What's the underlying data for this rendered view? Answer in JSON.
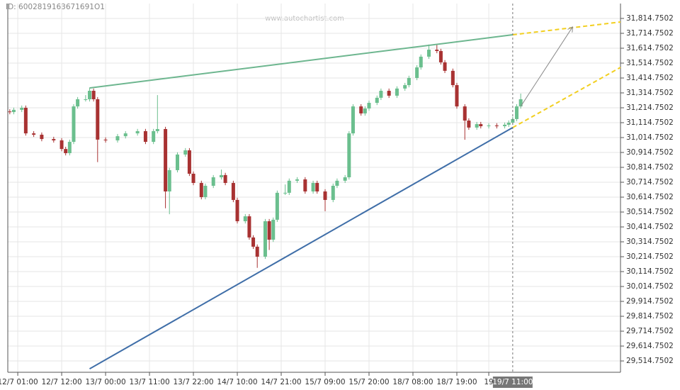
{
  "header": {
    "id": "ID: 6002819163671691O1",
    "watermark": "www.autochartist.com"
  },
  "chart_data": {
    "type": "candlestick",
    "x": [
      -2,
      -1,
      1,
      2,
      4,
      6,
      9,
      11,
      12,
      13,
      14,
      15,
      17,
      18,
      19,
      20,
      22,
      25,
      27,
      30,
      32,
      34,
      35,
      37,
      38,
      40,
      42,
      43,
      44,
      46,
      47,
      49,
      51,
      52,
      54,
      55,
      57,
      58,
      59,
      60,
      62,
      63,
      64,
      65,
      67,
      68,
      70,
      72,
      74,
      75,
      77,
      79,
      80,
      82,
      83,
      84,
      86,
      87,
      88,
      90,
      91,
      93,
      95,
      97,
      98,
      100,
      101,
      103,
      105,
      106,
      107,
      109,
      110,
      112,
      113,
      115,
      116,
      118,
      120,
      122,
      123,
      124,
      125,
      126
    ],
    "open": [
      31190,
      31186,
      31201,
      31215,
      31043,
      31034,
      31005,
      30996,
      30938,
      30910,
      30986,
      31224,
      31272,
      31272,
      31329,
      31272,
      31001,
      30996,
      31024,
      31043,
      31058,
      30986,
      31058,
      31072,
      30653,
      30796,
      30901,
      30929,
      30772,
      30710,
      30615,
      30691,
      30748,
      30763,
      30710,
      30596,
      30453,
      30486,
      30344,
      30282,
      30215,
      30453,
      30329,
      30463,
      30644,
      30644,
      30725,
      30734,
      30653,
      30710,
      30653,
      30596,
      30691,
      30725,
      30748,
      31043,
      31224,
      31177,
      31210,
      31248,
      31282,
      31329,
      31296,
      31344,
      31367,
      31415,
      31486,
      31558,
      31605,
      31596,
      31520,
      31463,
      31367,
      31224,
      31129,
      31082,
      31105,
      31091,
      31096,
      31091,
      31101,
      31115,
      31139,
      31224
    ],
    "high": [
      31205,
      31216,
      31230,
      31230,
      31058,
      31049,
      31020,
      31011,
      30953,
      31001,
      31239,
      31287,
      31300,
      31350,
      31344,
      31287,
      31016,
      31039,
      31058,
      31073,
      31073,
      31073,
      31300,
      31087,
      30811,
      30916,
      30944,
      30944,
      30787,
      30725,
      30706,
      30763,
      30800,
      30778,
      30725,
      30611,
      30501,
      30501,
      30359,
      30297,
      30468,
      30468,
      30478,
      30659,
      30700,
      30740,
      30749,
      30749,
      30725,
      30725,
      30668,
      30706,
      30740,
      30763,
      31058,
      31239,
      31239,
      31225,
      31263,
      31297,
      31344,
      31344,
      31359,
      31382,
      31430,
      31501,
      31573,
      31640,
      31640,
      31611,
      31535,
      31478,
      31382,
      31239,
      31144,
      31120,
      31120,
      31111,
      31111,
      31116,
      31130,
      31154,
      31239,
      31310
    ],
    "low": [
      31171,
      31171,
      31186,
      31028,
      31019,
      30990,
      30981,
      30923,
      30895,
      30895,
      30971,
      31209,
      31257,
      31257,
      31257,
      30850,
      30981,
      30981,
      31009,
      31028,
      30971,
      30971,
      31043,
      30540,
      30500,
      30781,
      30886,
      30757,
      30695,
      30600,
      30600,
      30676,
      30733,
      30695,
      30581,
      30438,
      30438,
      30329,
      30267,
      30140,
      30200,
      30260,
      30314,
      30448,
      30629,
      30629,
      30710,
      30638,
      30638,
      30638,
      30520,
      30581,
      30676,
      30710,
      30733,
      31028,
      31162,
      31162,
      31195,
      31233,
      31267,
      31281,
      31281,
      31329,
      31352,
      31400,
      31471,
      31543,
      31581,
      31505,
      31448,
      31352,
      31209,
      31000,
      31067,
      31067,
      31076,
      31076,
      31076,
      31076,
      31086,
      31100,
      31124,
      31209
    ],
    "close": [
      31186,
      31201,
      31215,
      31043,
      31034,
      31005,
      30996,
      30938,
      30910,
      30986,
      31224,
      31272,
      31272,
      31329,
      31272,
      31001,
      30996,
      31024,
      31043,
      31058,
      30986,
      31058,
      31072,
      30653,
      30796,
      30901,
      30929,
      30772,
      30710,
      30615,
      30691,
      30748,
      30763,
      30710,
      30596,
      30453,
      30486,
      30344,
      30282,
      30215,
      30453,
      30329,
      30463,
      30644,
      30644,
      30725,
      30734,
      30653,
      30710,
      30653,
      30596,
      30691,
      30725,
      30748,
      31043,
      31224,
      31177,
      31210,
      31248,
      31282,
      31329,
      31296,
      31344,
      31367,
      31415,
      31486,
      31558,
      31605,
      31596,
      31520,
      31463,
      31367,
      31224,
      31129,
      31082,
      31105,
      31091,
      31096,
      31091,
      31101,
      31115,
      31139,
      31224,
      31272
    ],
    "up_color": "#6bbf8e",
    "down_color": "#a83232",
    "xlim": [
      -2.5,
      151
    ],
    "xticks": [
      {
        "value": 0,
        "label": "12/7 01:00"
      },
      {
        "value": 11,
        "label": "12/7 12:00"
      },
      {
        "value": 22,
        "label": "13/7 00:00"
      },
      {
        "value": 33,
        "label": "13/7 11:00"
      },
      {
        "value": 44,
        "label": "13/7 22:00"
      },
      {
        "value": 55,
        "label": "14/7 10:00"
      },
      {
        "value": 66,
        "label": "14/7 21:00"
      },
      {
        "value": 77,
        "label": "15/7 09:00"
      },
      {
        "value": 88,
        "label": "15/7 20:00"
      },
      {
        "value": 99,
        "label": "18/7 08:00"
      },
      {
        "value": 110,
        "label": "18/7 19:00"
      },
      {
        "value": 118,
        "label": "19"
      }
    ],
    "highlight_xtick": {
      "value": 124,
      "label": "19/7 11:00"
    },
    "ylim": [
      29438.75,
      31914.75
    ],
    "yticks": [
      {
        "value": 31814.7502,
        "label": "31,814.7502"
      },
      {
        "value": 31714.7502,
        "label": "31,714.7502"
      },
      {
        "value": 31614.7502,
        "label": "31,614.7502"
      },
      {
        "value": 31514.7502,
        "label": "31,514.7502"
      },
      {
        "value": 31414.7502,
        "label": "31,414.7502"
      },
      {
        "value": 31314.7502,
        "label": "31,314.7502"
      },
      {
        "value": 31214.7502,
        "label": "31,214.7502"
      },
      {
        "value": 31114.7502,
        "label": "31,114.7502"
      },
      {
        "value": 31014.7502,
        "label": "31,014.7502"
      },
      {
        "value": 30914.7502,
        "label": "30,914.7502"
      },
      {
        "value": 30814.7502,
        "label": "30,814.7502"
      },
      {
        "value": 30714.7502,
        "label": "30,714.7502"
      },
      {
        "value": 30614.7502,
        "label": "30,614.7502"
      },
      {
        "value": 30514.7502,
        "label": "30,514.7502"
      },
      {
        "value": 30414.7502,
        "label": "30,414.7502"
      },
      {
        "value": 30314.7502,
        "label": "30,314.7502"
      },
      {
        "value": 30214.7502,
        "label": "30,214.7502"
      },
      {
        "value": 30114.7502,
        "label": "30,114.7502"
      },
      {
        "value": 30014.7502,
        "label": "30,014.7502"
      },
      {
        "value": 29914.7502,
        "label": "29,914.7502"
      },
      {
        "value": 29814.7502,
        "label": "29,814.7502"
      },
      {
        "value": 29714.7502,
        "label": "29,714.7502"
      },
      {
        "value": 29614.7502,
        "label": "29,614.7502"
      },
      {
        "value": 29514.7502,
        "label": "29,514.7502"
      }
    ],
    "grid": true,
    "trendlines": [
      {
        "x": [
          18,
          124
        ],
        "y": [
          31348,
          31705
        ],
        "color": "#6db68f",
        "dashed": false
      },
      {
        "x": [
          18,
          124
        ],
        "y": [
          29462,
          31082
        ],
        "color": "#3f6ea8",
        "dashed": false
      },
      {
        "x": [
          124,
          151
        ],
        "y": [
          31705,
          31791
        ],
        "color": "#f2cf1f",
        "dashed": true
      },
      {
        "x": [
          124,
          151
        ],
        "y": [
          31082,
          31486
        ],
        "color": "#f2cf1f",
        "dashed": true
      }
    ],
    "arrow": {
      "x": [
        126,
        139
      ],
      "y": [
        31224,
        31758
      ],
      "color": "#8a8a8a"
    }
  }
}
